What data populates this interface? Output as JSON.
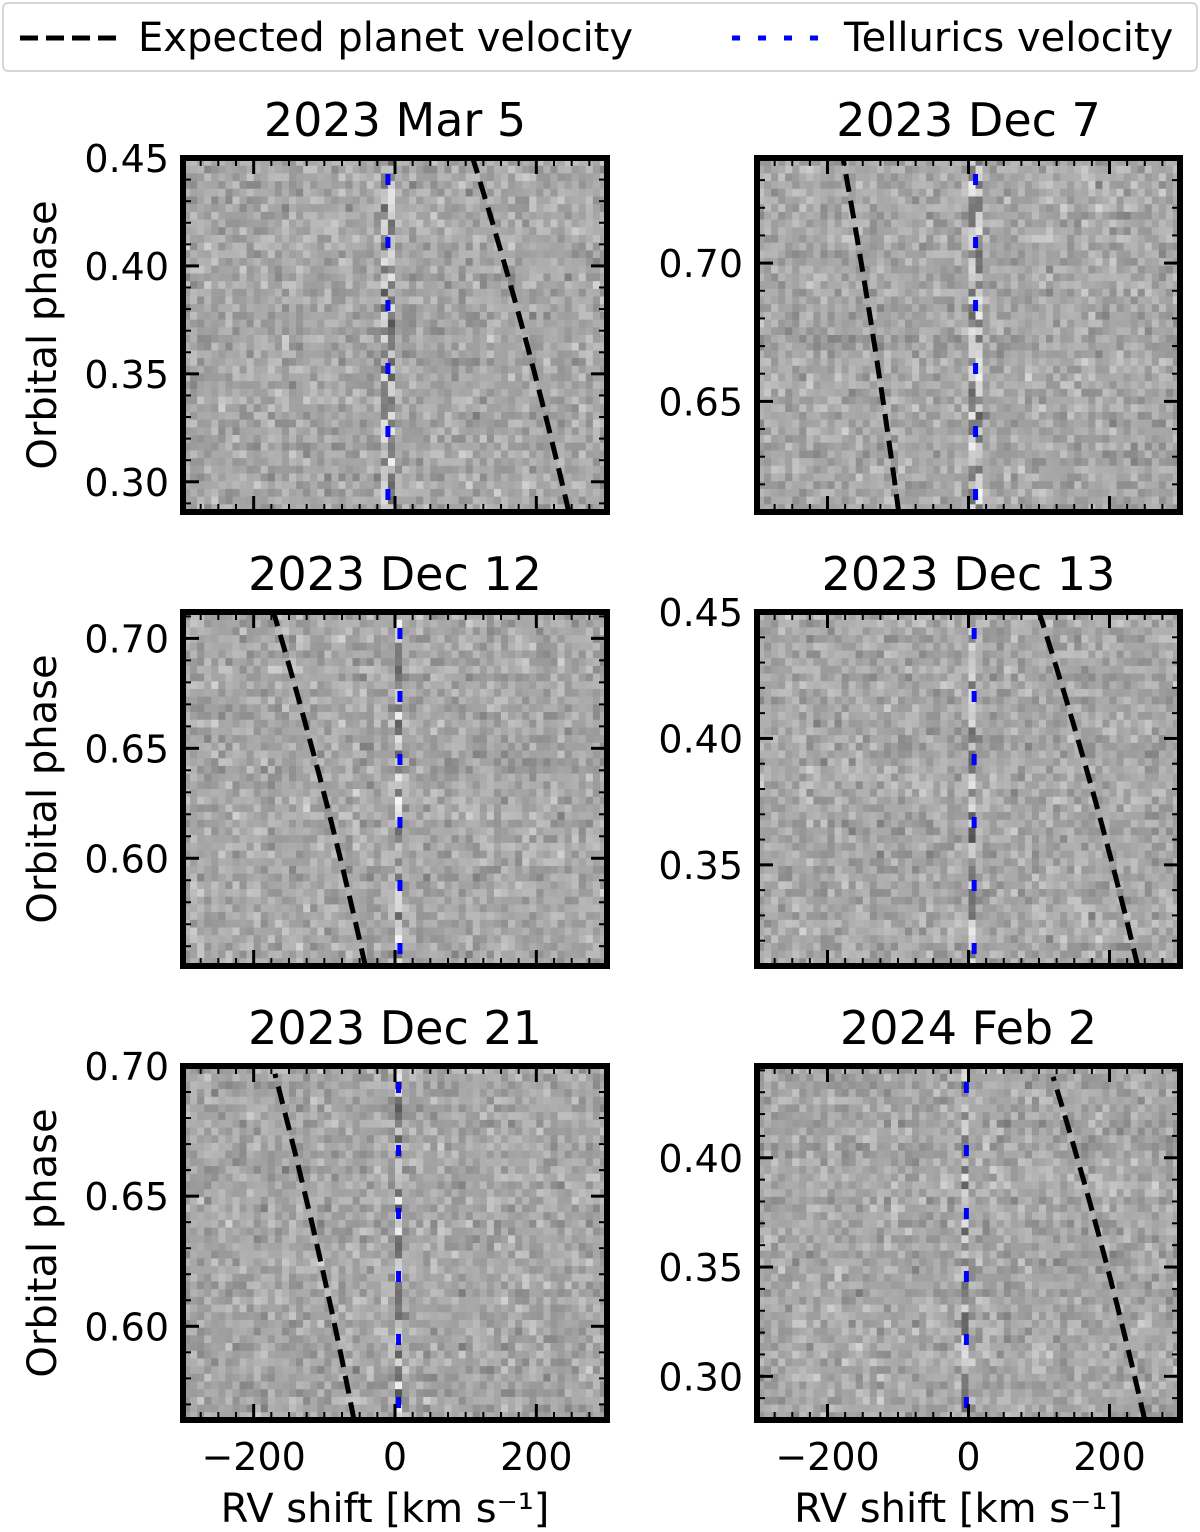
{
  "legend": {
    "planet_label": "Expected planet velocity",
    "telluric_label": "Tellurics velocity"
  },
  "colors": {
    "planet_line": "#000000",
    "telluric_line": "#0000ff",
    "cmap_low": "#1e1e1e",
    "cmap_high": "#f5f5f5"
  },
  "chart_data": [
    {
      "type": "heatmap",
      "title": "2023 Mar 5",
      "xlabel": "",
      "ylabel": "Orbital phase",
      "xlim": [
        -300,
        300
      ],
      "ylim": [
        0.286,
        0.45
      ],
      "xticks": [],
      "yticks": [
        0.3,
        0.35,
        0.4,
        0.45
      ],
      "ytick_labels": [
        "0.30",
        "0.35",
        "0.40",
        "0.45"
      ],
      "planet_rv": {
        "phase": [
          0.286,
          0.45
        ],
        "rv": [
          246,
          110
        ]
      },
      "telluric_rv": -10,
      "colormap": "gray"
    },
    {
      "type": "heatmap",
      "title": "2023 Dec 7",
      "xlabel": "",
      "ylabel": "",
      "xlim": [
        -300,
        300
      ],
      "ylim": [
        0.61,
        0.738
      ],
      "xticks": [],
      "yticks": [
        0.65,
        0.7
      ],
      "ytick_labels": [
        "0.65",
        "0.70"
      ],
      "planet_rv": {
        "phase": [
          0.61,
          0.738
        ],
        "rv": [
          -99,
          -178
        ]
      },
      "telluric_rv": 10,
      "colormap": "gray"
    },
    {
      "type": "heatmap",
      "title": "2023 Dec 12",
      "xlabel": "",
      "ylabel": "Orbital phase",
      "xlim": [
        -300,
        300
      ],
      "ylim": [
        0.551,
        0.712
      ],
      "xticks": [],
      "yticks": [
        0.6,
        0.65,
        0.7
      ],
      "ytick_labels": [
        "0.60",
        "0.65",
        "0.70"
      ],
      "planet_rv": {
        "phase": [
          0.551,
          0.712
        ],
        "rv": [
          -42,
          -172
        ]
      },
      "telluric_rv": 7,
      "colormap": "gray"
    },
    {
      "type": "heatmap",
      "title": "2023 Dec 13",
      "xlabel": "",
      "ylabel": "",
      "xlim": [
        -300,
        300
      ],
      "ylim": [
        0.31,
        0.45
      ],
      "xticks": [],
      "yticks": [
        0.35,
        0.4,
        0.45
      ],
      "ytick_labels": [
        "0.35",
        "0.40",
        "0.45"
      ],
      "planet_rv": {
        "phase": [
          0.31,
          0.45
        ],
        "rv": [
          240,
          100
        ]
      },
      "telluric_rv": 8,
      "colormap": "gray"
    },
    {
      "type": "heatmap",
      "title": "2023 Dec 21",
      "xlabel": "RV shift [km s⁻¹]",
      "ylabel": "Orbital phase",
      "xlim": [
        -300,
        300
      ],
      "ylim": [
        0.564,
        0.7
      ],
      "xticks": [
        -200,
        0,
        200
      ],
      "xtick_labels": [
        "−200",
        "0",
        "200"
      ],
      "yticks": [
        0.6,
        0.65,
        0.7
      ],
      "ytick_labels": [
        "0.60",
        "0.65",
        "0.70"
      ],
      "planet_rv": {
        "phase": [
          0.564,
          0.697
        ],
        "rv": [
          -58,
          -170
        ]
      },
      "telluric_rv": 5,
      "colormap": "gray"
    },
    {
      "type": "heatmap",
      "title": "2024 Feb 2",
      "xlabel": "RV shift [km s⁻¹]",
      "ylabel": "",
      "xlim": [
        -300,
        300
      ],
      "ylim": [
        0.28,
        0.442
      ],
      "xticks": [
        -200,
        0,
        200
      ],
      "xtick_labels": [
        "−200",
        "0",
        "200"
      ],
      "yticks": [
        0.3,
        0.35,
        0.4
      ],
      "ytick_labels": [
        "0.30",
        "0.35",
        "0.40"
      ],
      "planet_rv": {
        "phase": [
          0.28,
          0.437
        ],
        "rv": [
          250,
          120
        ]
      },
      "telluric_rv": -3,
      "colormap": "gray"
    }
  ]
}
